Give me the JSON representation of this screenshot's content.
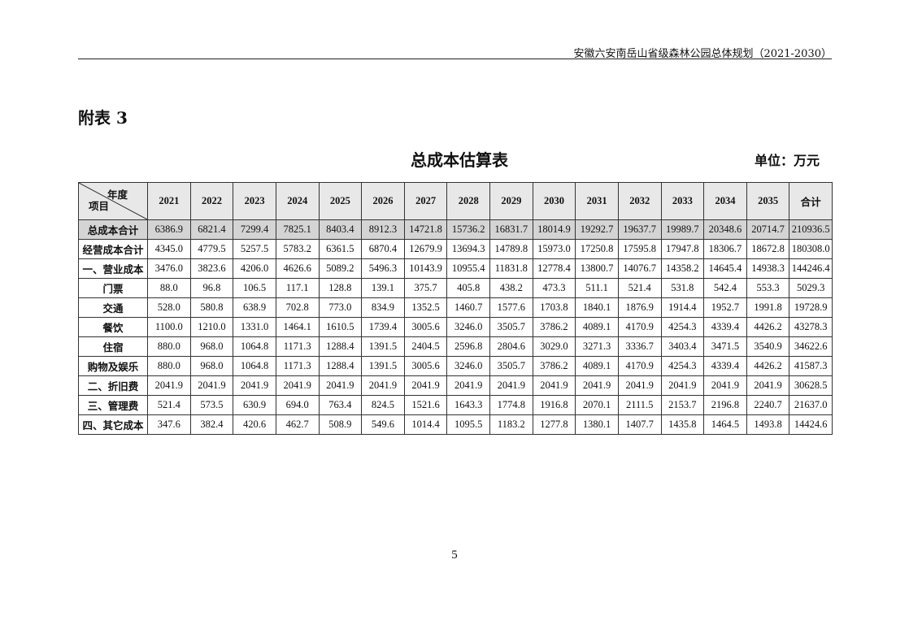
{
  "header": {
    "doc_title": "安徽六安南岳山省级森林公园总体规划（2021-2030）"
  },
  "appendix_label": "附表 3",
  "table_title": "总成本估算表",
  "unit": "单位：万元",
  "table": {
    "corner_top": "年度",
    "corner_bottom": "项目",
    "columns": [
      "2021",
      "2022",
      "2023",
      "2024",
      "2025",
      "2026",
      "2027",
      "2028",
      "2029",
      "2030",
      "2031",
      "2032",
      "2033",
      "2034",
      "2035",
      "合计"
    ],
    "rows": [
      {
        "label": "总成本合计",
        "values": [
          "6386.9",
          "6821.4",
          "7299.4",
          "7825.1",
          "8403.4",
          "8912.3",
          "14721.8",
          "15736.2",
          "16831.7",
          "18014.9",
          "19292.7",
          "19637.7",
          "19989.7",
          "20348.6",
          "20714.7",
          "210936.5"
        ]
      },
      {
        "label": "经营成本合计",
        "values": [
          "4345.0",
          "4779.5",
          "5257.5",
          "5783.2",
          "6361.5",
          "6870.4",
          "12679.9",
          "13694.3",
          "14789.8",
          "15973.0",
          "17250.8",
          "17595.8",
          "17947.8",
          "18306.7",
          "18672.8",
          "180308.0"
        ]
      },
      {
        "label": "一、营业成本",
        "values": [
          "3476.0",
          "3823.6",
          "4206.0",
          "4626.6",
          "5089.2",
          "5496.3",
          "10143.9",
          "10955.4",
          "11831.8",
          "12778.4",
          "13800.7",
          "14076.7",
          "14358.2",
          "14645.4",
          "14938.3",
          "144246.4"
        ]
      },
      {
        "label": "门票",
        "values": [
          "88.0",
          "96.8",
          "106.5",
          "117.1",
          "128.8",
          "139.1",
          "375.7",
          "405.8",
          "438.2",
          "473.3",
          "511.1",
          "521.4",
          "531.8",
          "542.4",
          "553.3",
          "5029.3"
        ]
      },
      {
        "label": "交通",
        "values": [
          "528.0",
          "580.8",
          "638.9",
          "702.8",
          "773.0",
          "834.9",
          "1352.5",
          "1460.7",
          "1577.6",
          "1703.8",
          "1840.1",
          "1876.9",
          "1914.4",
          "1952.7",
          "1991.8",
          "19728.9"
        ]
      },
      {
        "label": "餐饮",
        "values": [
          "1100.0",
          "1210.0",
          "1331.0",
          "1464.1",
          "1610.5",
          "1739.4",
          "3005.6",
          "3246.0",
          "3505.7",
          "3786.2",
          "4089.1",
          "4170.9",
          "4254.3",
          "4339.4",
          "4426.2",
          "43278.3"
        ]
      },
      {
        "label": "住宿",
        "values": [
          "880.0",
          "968.0",
          "1064.8",
          "1171.3",
          "1288.4",
          "1391.5",
          "2404.5",
          "2596.8",
          "2804.6",
          "3029.0",
          "3271.3",
          "3336.7",
          "3403.4",
          "3471.5",
          "3540.9",
          "34622.6"
        ]
      },
      {
        "label": "购物及娱乐",
        "values": [
          "880.0",
          "968.0",
          "1064.8",
          "1171.3",
          "1288.4",
          "1391.5",
          "3005.6",
          "3246.0",
          "3505.7",
          "3786.2",
          "4089.1",
          "4170.9",
          "4254.3",
          "4339.4",
          "4426.2",
          "41587.3"
        ]
      },
      {
        "label": "二、折旧费",
        "values": [
          "2041.9",
          "2041.9",
          "2041.9",
          "2041.9",
          "2041.9",
          "2041.9",
          "2041.9",
          "2041.9",
          "2041.9",
          "2041.9",
          "2041.9",
          "2041.9",
          "2041.9",
          "2041.9",
          "2041.9",
          "30628.5"
        ]
      },
      {
        "label": "三、管理费",
        "values": [
          "521.4",
          "573.5",
          "630.9",
          "694.0",
          "763.4",
          "824.5",
          "1521.6",
          "1643.3",
          "1774.8",
          "1916.8",
          "2070.1",
          "2111.5",
          "2153.7",
          "2196.8",
          "2240.7",
          "21637.0"
        ]
      },
      {
        "label": "四、其它成本",
        "values": [
          "347.6",
          "382.4",
          "420.6",
          "462.7",
          "508.9",
          "549.6",
          "1014.4",
          "1095.5",
          "1183.2",
          "1277.8",
          "1380.1",
          "1407.7",
          "1435.8",
          "1464.5",
          "1493.8",
          "14424.6"
        ]
      }
    ]
  },
  "page_number": "5"
}
